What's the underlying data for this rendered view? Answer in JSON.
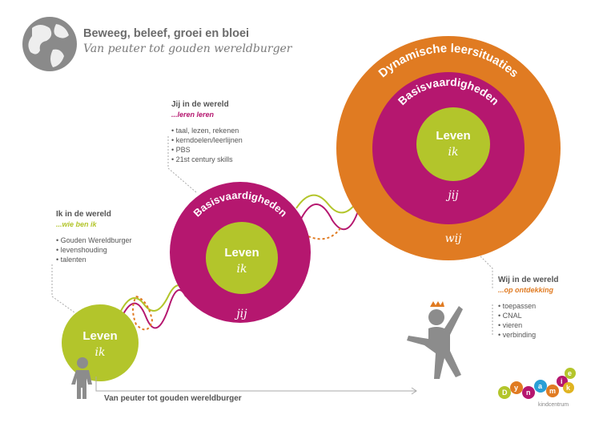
{
  "header": {
    "title": "Beweeg, beleef, groei en bloei",
    "subtitle": "Van peuter tot gouden wereldburger"
  },
  "circles": {
    "leven": "Leven",
    "ik": "ik",
    "basis": "Basisvaardigheden",
    "jij": "jij",
    "dynamisch": "Dynamische leersituaties",
    "wij": "wij"
  },
  "blocks": {
    "ik": {
      "title": "Ik in de wereld",
      "sub": "...wie ben ik",
      "items": [
        "Gouden Wereldburger",
        "levenshouding",
        "talenten"
      ]
    },
    "jij": {
      "title": "Jij in de wereld",
      "sub": "...leren leren",
      "items": [
        "taal, lezen, rekenen",
        "kerndoelen/leerlijnen",
        "PBS",
        "21st century skills"
      ]
    },
    "wij": {
      "title": "Wij in de wereld",
      "sub": "...op ontdekking",
      "items": [
        "toepassen",
        "CNAL",
        "vieren",
        "verbinding"
      ]
    }
  },
  "bottom_label": "Van peuter tot gouden wereldburger",
  "logo": {
    "letters": [
      "D",
      "y",
      "n",
      "a",
      "m",
      "i",
      "e",
      "k"
    ],
    "sub": "kindcentrum"
  },
  "colors": {
    "green": "#b3c52b",
    "magenta": "#b5176f",
    "orange": "#e07b22",
    "gray": "#8c8c8c"
  }
}
